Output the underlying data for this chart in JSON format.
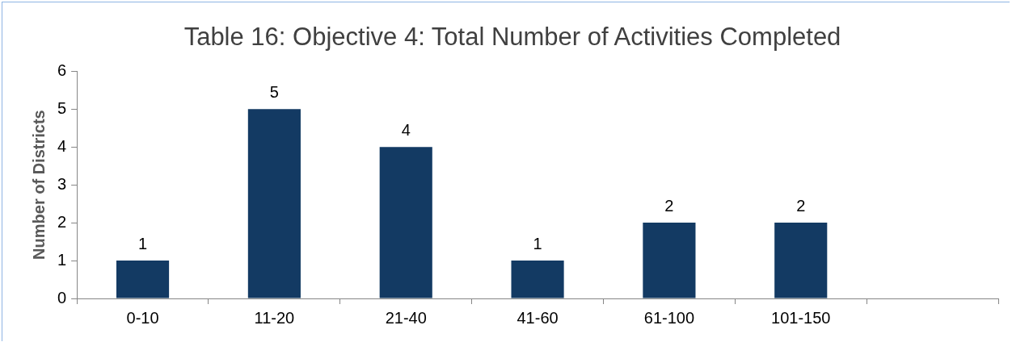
{
  "chart_data": {
    "type": "bar",
    "title": "Table 16: Objective 4: Total Number of Activities Completed",
    "ylabel": "Number of Districts",
    "categories": [
      "0-10",
      "11-20",
      "21-40",
      "41-60",
      "61-100",
      "101-150",
      null
    ],
    "values": [
      1,
      5,
      4,
      1,
      2,
      2,
      null
    ],
    "color": "#133a63",
    "ylim": [
      0,
      6
    ],
    "yticks": [
      0,
      1,
      2,
      3,
      4,
      5,
      6
    ],
    "grid": false,
    "legend": false,
    "data_labels": true
  }
}
